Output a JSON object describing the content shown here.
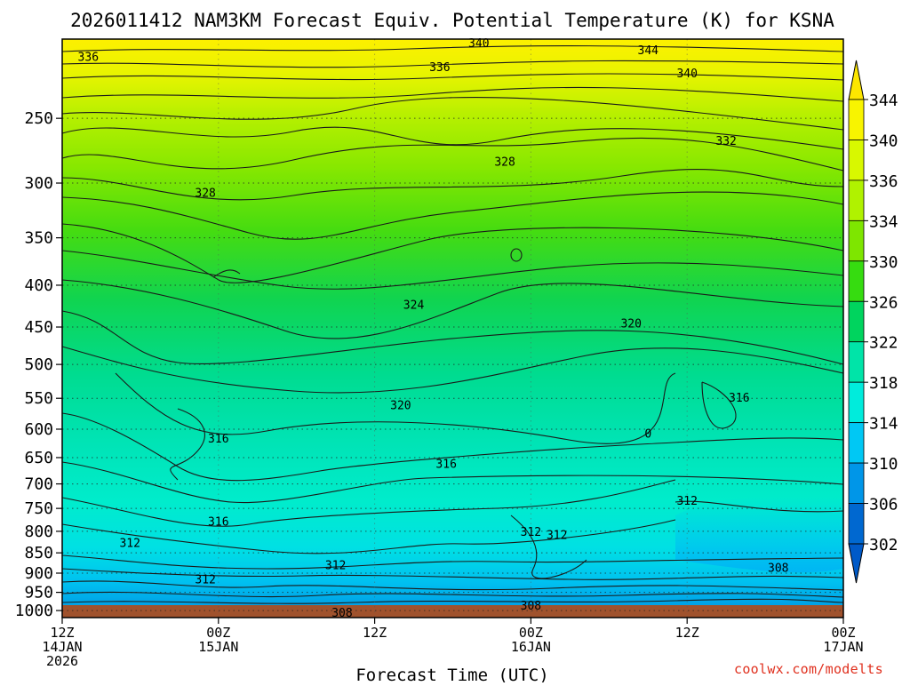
{
  "title": "2026011412 NAM3KM Forecast Equiv. Potential Temperature (K) for KSNA",
  "credit": "coolwx.com/modelts",
  "chart_data": {
    "type": "contour",
    "title": "2026011412 NAM3KM Forecast Equiv. Potential Temperature (K) for KSNA",
    "xlabel": "Forecast Time (UTC)",
    "ylabel": "",
    "x_ticks": [
      {
        "hour": 0,
        "lines": [
          "12Z",
          "14JAN",
          "2026"
        ]
      },
      {
        "hour": 12,
        "lines": [
          "00Z",
          "15JAN"
        ]
      },
      {
        "hour": 24,
        "lines": [
          "12Z"
        ]
      },
      {
        "hour": 36,
        "lines": [
          "00Z",
          "16JAN"
        ]
      },
      {
        "hour": 48,
        "lines": [
          "12Z"
        ]
      },
      {
        "hour": 60,
        "lines": [
          "00Z",
          "17JAN"
        ]
      }
    ],
    "xlim_hours": [
      0,
      60
    ],
    "y_ticks": [
      250,
      300,
      350,
      400,
      450,
      500,
      550,
      600,
      650,
      700,
      750,
      800,
      850,
      900,
      950,
      1000
    ],
    "ylim_hPa": [
      200,
      1020
    ],
    "y_scale": "log-pressure",
    "grid": true,
    "colorbar": {
      "labels": [
        "344",
        "340",
        "336",
        "334",
        "330",
        "326",
        "322",
        "318",
        "314",
        "310",
        "306",
        "302"
      ],
      "colors": [
        "#fde600",
        "#f8f400",
        "#d8f800",
        "#b0f200",
        "#7ee600",
        "#36dc10",
        "#00d45e",
        "#00e4a8",
        "#00ecdc",
        "#00c8f4",
        "#0096e8",
        "#0068d0",
        "#005ac8"
      ]
    },
    "contour_labels": [
      {
        "text": "336",
        "t": 2.0,
        "p": 210
      },
      {
        "text": "340",
        "t": 32.0,
        "p": 202
      },
      {
        "text": "344",
        "t": 45.0,
        "p": 206
      },
      {
        "text": "336",
        "t": 29.0,
        "p": 216
      },
      {
        "text": "340",
        "t": 48.0,
        "p": 220
      },
      {
        "text": "332",
        "t": 51.0,
        "p": 266
      },
      {
        "text": "328",
        "t": 34.0,
        "p": 282
      },
      {
        "text": "328",
        "t": 11.0,
        "p": 308
      },
      {
        "text": "324",
        "t": 27.0,
        "p": 422
      },
      {
        "text": "320",
        "t": 43.7,
        "p": 445
      },
      {
        "text": "320",
        "t": 26.0,
        "p": 560
      },
      {
        "text": "316",
        "t": 52.0,
        "p": 548
      },
      {
        "text": "0",
        "t": 45.0,
        "p": 607
      },
      {
        "text": "316",
        "t": 12.0,
        "p": 615
      },
      {
        "text": "316",
        "t": 29.5,
        "p": 661
      },
      {
        "text": "316",
        "t": 12.0,
        "p": 777
      },
      {
        "text": "312",
        "t": 48.0,
        "p": 733
      },
      {
        "text": "312",
        "t": 36.0,
        "p": 800
      },
      {
        "text": "312",
        "t": 38.0,
        "p": 807
      },
      {
        "text": "312",
        "t": 5.2,
        "p": 826
      },
      {
        "text": "312",
        "t": 21.0,
        "p": 879
      },
      {
        "text": "312",
        "t": 11.0,
        "p": 915
      },
      {
        "text": "308",
        "t": 55.0,
        "p": 886
      },
      {
        "text": "308",
        "t": 36.0,
        "p": 985
      },
      {
        "text": "308",
        "t": 21.5,
        "p": 1005
      }
    ]
  }
}
